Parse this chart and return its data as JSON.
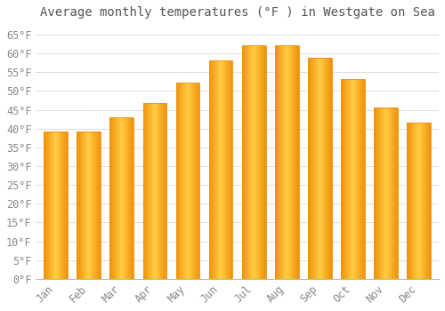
{
  "title": "Average monthly temperatures (°F ) in Westgate on Sea",
  "months": [
    "Jan",
    "Feb",
    "Mar",
    "Apr",
    "May",
    "Jun",
    "Jul",
    "Aug",
    "Sep",
    "Oct",
    "Nov",
    "Dec"
  ],
  "values": [
    39.2,
    39.2,
    43.0,
    46.9,
    52.3,
    58.1,
    62.2,
    62.2,
    58.8,
    53.1,
    45.7,
    41.7
  ],
  "bar_color_center": "#FFCC44",
  "bar_color_edge": "#F0900A",
  "background_color": "#ffffff",
  "grid_color": "#DDDDDD",
  "ylim": [
    0,
    68
  ],
  "yticks": [
    0,
    5,
    10,
    15,
    20,
    25,
    30,
    35,
    40,
    45,
    50,
    55,
    60,
    65
  ],
  "title_fontsize": 10,
  "tick_fontsize": 8.5,
  "tick_color": "#888888",
  "title_color": "#555555"
}
